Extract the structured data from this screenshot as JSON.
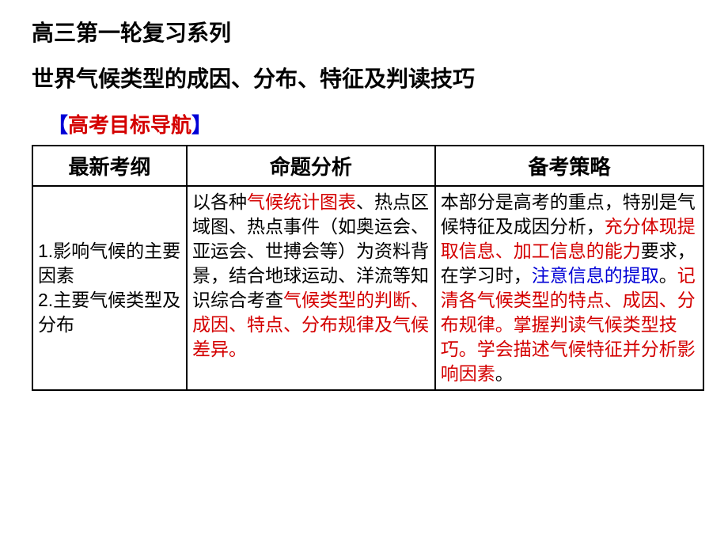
{
  "series_title": "高三第一轮复习系列",
  "main_title": "世界气候类型的成因、分布、特征及判读技巧",
  "section": {
    "bracket_open": "【",
    "text": "高考目标导航",
    "bracket_close": "】"
  },
  "table": {
    "headers": {
      "col1": "最新考纲",
      "col2": "命题分析",
      "col3": "备考策略"
    },
    "col1": {
      "line1": "1.影响气候的主要因素",
      "line2": "2.主要气候类型及分布"
    },
    "col2": {
      "p1a": "以各种",
      "p1b": "气候统计图表",
      "p1c": "、热点区域图、热点事件（如奥运会、亚运会、世搏会等）为资料背景，结合地球运动、洋流等知识综合考查",
      "p1d": "气候类型的判断、成因、特点、分布规律及气候差异。"
    },
    "col3": {
      "s1": "本部分是高考的重点，特别是气候特征及成因分析，",
      "s2": "充分体现提取信息、加工信息的能力",
      "s3": "要求，在学习时，",
      "s4": "注意信息的提取",
      "s5": "。",
      "s6": "记清各气候类型的特点、成因、分布规律。掌握判读气候类型技巧。学会描述气候特征并分析影响因素",
      "s7": "。"
    }
  }
}
